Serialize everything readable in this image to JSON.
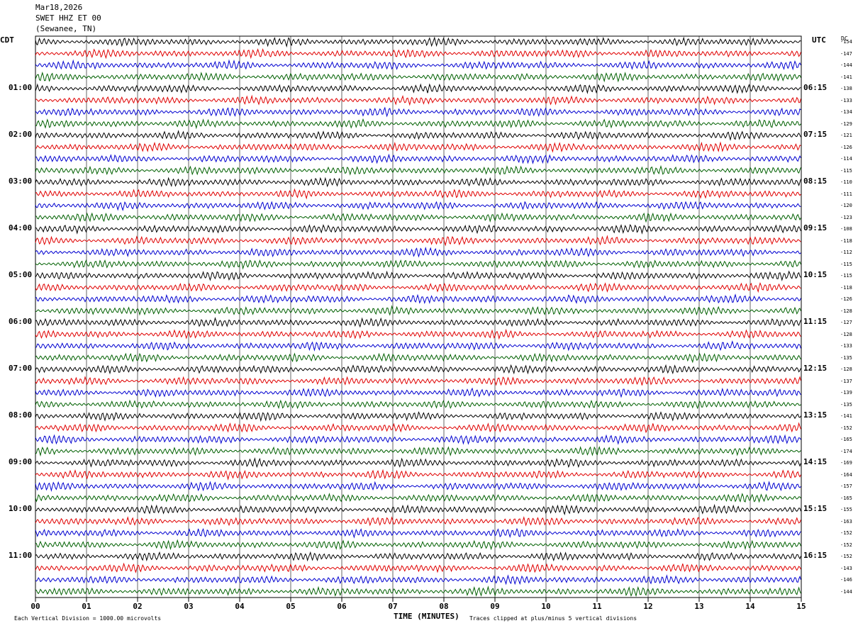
{
  "header": {
    "date": "Mar18,2026",
    "station": "SWET HHZ ET 00",
    "location": "(Sewanee, TN)"
  },
  "left_zone": "CDT",
  "right_zone": "UTC",
  "dc_label": "DC",
  "footer": {
    "vertical_division": "Each Vertical Division = 1000.00 microvolts",
    "xlabel": "TIME (MINUTES)",
    "clip_note": "Traces clipped at plus/minus 5 vertical divisions"
  },
  "colors": {
    "trace_cycle": [
      "#000000",
      "#e00000",
      "#0000d0",
      "#006000"
    ],
    "grid": "#000000"
  },
  "chart_data": {
    "type": "line",
    "description_kind": "helicorder",
    "xlim": [
      0,
      15
    ],
    "x_ticks": [
      "00",
      "01",
      "02",
      "03",
      "04",
      "05",
      "06",
      "07",
      "08",
      "09",
      "10",
      "11",
      "12",
      "13",
      "14",
      "15"
    ],
    "rows_per_hour": 4,
    "row_count": 48,
    "left_hour_labels": [
      "01:00",
      "02:00",
      "03:00",
      "04:00",
      "05:00",
      "06:00",
      "07:00",
      "08:00",
      "09:00",
      "10:00",
      "11:00"
    ],
    "right_hour_labels": [
      "06:15",
      "07:15",
      "08:15",
      "09:15",
      "10:15",
      "11:15",
      "12:15",
      "13:15",
      "14:15",
      "15:15",
      "16:15"
    ],
    "dc_offsets": [
      -154,
      -147,
      -144,
      -141,
      -138,
      -133,
      -134,
      -129,
      -121,
      -126,
      -114,
      -115,
      -110,
      -111,
      -120,
      -123,
      -108,
      -118,
      -112,
      -115,
      -115,
      -118,
      -126,
      -128,
      -127,
      -128,
      -133,
      -135,
      -128,
      -137,
      -139,
      -135,
      -141,
      -152,
      -165,
      -174,
      -169,
      -164,
      -157,
      -165,
      -155,
      -163,
      -152,
      -152,
      -152,
      -143,
      -146,
      -144
    ]
  }
}
